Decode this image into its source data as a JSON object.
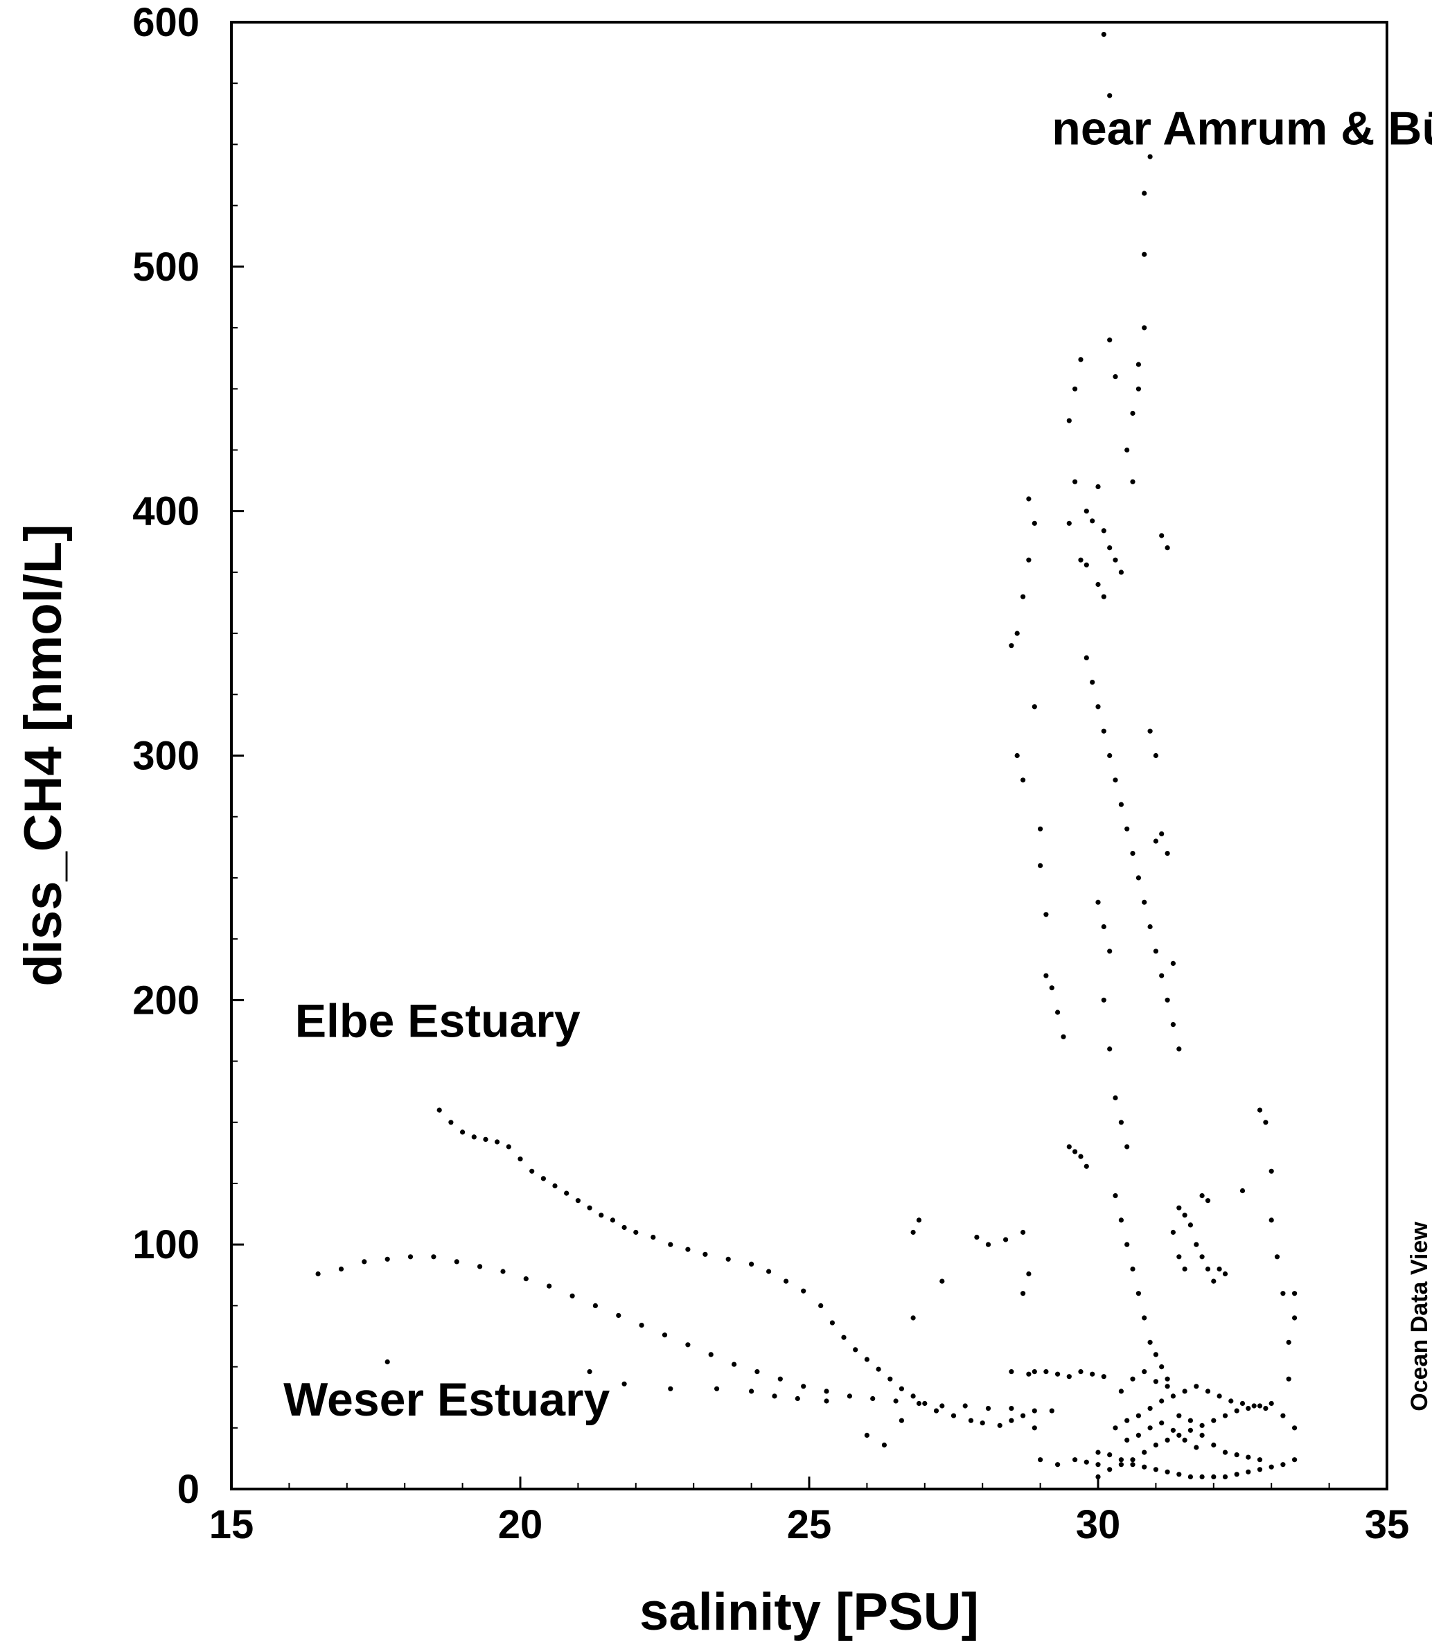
{
  "chart_data": {
    "type": "scatter",
    "xlabel": "salinity [PSU]",
    "ylabel": "diss_CH4 [nmol/L]",
    "xlim": [
      15,
      35
    ],
    "ylim": [
      0,
      600
    ],
    "x_ticks": [
      "15",
      "20",
      "25",
      "30",
      "35"
    ],
    "y_ticks": [
      "0",
      "100",
      "200",
      "300",
      "400",
      "500",
      "600"
    ],
    "grid": false,
    "marker_color": "#000000",
    "annotations": [
      {
        "id": "amrum",
        "text": "near Amrum & Büsum",
        "x": 29.2,
        "y": 550
      },
      {
        "id": "elbe",
        "text": "Elbe Estuary",
        "x": 16.1,
        "y": 185
      },
      {
        "id": "weser",
        "text": "Weser Estuary",
        "x": 15.9,
        "y": 30
      }
    ],
    "watermark": "Ocean Data View",
    "series": [
      {
        "points": [
          [
            18.6,
            155
          ],
          [
            18.8,
            150
          ],
          [
            19.0,
            146
          ],
          [
            19.2,
            144
          ],
          [
            19.4,
            143
          ],
          [
            19.6,
            142
          ],
          [
            19.8,
            140
          ],
          [
            20.0,
            135
          ],
          [
            20.2,
            130
          ],
          [
            20.4,
            127
          ],
          [
            20.6,
            124
          ],
          [
            20.8,
            121
          ],
          [
            21.0,
            118
          ],
          [
            21.2,
            115
          ],
          [
            21.4,
            112
          ],
          [
            21.6,
            110
          ],
          [
            21.8,
            107
          ],
          [
            22.0,
            105
          ],
          [
            22.3,
            103
          ],
          [
            22.6,
            100
          ],
          [
            22.9,
            98
          ],
          [
            23.2,
            96
          ],
          [
            23.6,
            94
          ],
          [
            24.0,
            92
          ],
          [
            24.3,
            89
          ],
          [
            24.6,
            85
          ],
          [
            24.9,
            81
          ],
          [
            25.2,
            75
          ],
          [
            25.4,
            68
          ],
          [
            25.6,
            62
          ],
          [
            25.8,
            57
          ],
          [
            26.0,
            53
          ],
          [
            26.2,
            49
          ],
          [
            26.4,
            45
          ],
          [
            26.6,
            41
          ],
          [
            26.8,
            38
          ],
          [
            27.0,
            35
          ],
          [
            27.2,
            32
          ],
          [
            27.5,
            30
          ],
          [
            27.8,
            28
          ],
          [
            28.0,
            27
          ],
          [
            28.3,
            26
          ],
          [
            28.5,
            28
          ],
          [
            28.7,
            30
          ],
          [
            28.9,
            25
          ],
          [
            16.5,
            88
          ],
          [
            16.9,
            90
          ],
          [
            17.3,
            93
          ],
          [
            17.7,
            94
          ],
          [
            18.1,
            95
          ],
          [
            18.5,
            95
          ],
          [
            18.9,
            93
          ],
          [
            19.3,
            91
          ],
          [
            19.7,
            89
          ],
          [
            20.1,
            86
          ],
          [
            20.5,
            83
          ],
          [
            20.9,
            79
          ],
          [
            21.3,
            75
          ],
          [
            21.7,
            71
          ],
          [
            22.1,
            67
          ],
          [
            22.5,
            63
          ],
          [
            22.9,
            59
          ],
          [
            23.3,
            55
          ],
          [
            23.7,
            51
          ],
          [
            24.1,
            48
          ],
          [
            24.5,
            45
          ],
          [
            24.9,
            42
          ],
          [
            25.3,
            40
          ],
          [
            25.7,
            38
          ],
          [
            26.1,
            37
          ],
          [
            26.5,
            36
          ],
          [
            26.9,
            35
          ],
          [
            27.3,
            34
          ],
          [
            27.7,
            34
          ],
          [
            28.1,
            33
          ],
          [
            28.5,
            33
          ],
          [
            28.9,
            32
          ],
          [
            29.2,
            32
          ],
          [
            17.7,
            52
          ],
          [
            21.2,
            48
          ],
          [
            21.8,
            43
          ],
          [
            22.6,
            41
          ],
          [
            23.4,
            41
          ],
          [
            24.0,
            40
          ],
          [
            24.4,
            38
          ],
          [
            24.8,
            37
          ],
          [
            25.3,
            36
          ],
          [
            26.3,
            18
          ],
          [
            26.0,
            22
          ],
          [
            26.6,
            28
          ],
          [
            26.8,
            70
          ],
          [
            26.8,
            105
          ],
          [
            26.9,
            110
          ],
          [
            27.3,
            85
          ],
          [
            27.9,
            103
          ],
          [
            28.1,
            100
          ],
          [
            28.4,
            102
          ],
          [
            28.7,
            105
          ],
          [
            28.5,
            48
          ],
          [
            28.8,
            47
          ],
          [
            28.7,
            80
          ],
          [
            28.8,
            88
          ],
          [
            29.0,
            12
          ],
          [
            29.3,
            10
          ],
          [
            28.5,
            345
          ],
          [
            28.6,
            350
          ],
          [
            28.7,
            365
          ],
          [
            28.8,
            380
          ],
          [
            28.8,
            405
          ],
          [
            28.9,
            395
          ],
          [
            28.6,
            300
          ],
          [
            28.7,
            290
          ],
          [
            28.9,
            320
          ],
          [
            29.0,
            270
          ],
          [
            29.0,
            255
          ],
          [
            29.1,
            235
          ],
          [
            29.1,
            210
          ],
          [
            29.2,
            205
          ],
          [
            29.3,
            195
          ],
          [
            29.4,
            185
          ],
          [
            29.5,
            140
          ],
          [
            29.6,
            138
          ],
          [
            29.7,
            136
          ],
          [
            29.8,
            132
          ],
          [
            29.5,
            437
          ],
          [
            29.6,
            450
          ],
          [
            29.7,
            462
          ],
          [
            29.6,
            412
          ],
          [
            29.5,
            395
          ],
          [
            29.8,
            400
          ],
          [
            29.9,
            396
          ],
          [
            30.0,
            410
          ],
          [
            30.1,
            392
          ],
          [
            30.2,
            385
          ],
          [
            30.3,
            380
          ],
          [
            30.4,
            375
          ],
          [
            29.7,
            380
          ],
          [
            29.8,
            378
          ],
          [
            30.0,
            370
          ],
          [
            30.1,
            365
          ],
          [
            30.1,
            595
          ],
          [
            30.2,
            570
          ],
          [
            30.9,
            545
          ],
          [
            30.8,
            530
          ],
          [
            30.8,
            505
          ],
          [
            30.8,
            475
          ],
          [
            30.7,
            460
          ],
          [
            30.6,
            440
          ],
          [
            30.5,
            425
          ],
          [
            30.7,
            450
          ],
          [
            30.2,
            470
          ],
          [
            30.3,
            455
          ],
          [
            30.6,
            412
          ],
          [
            29.8,
            340
          ],
          [
            29.9,
            330
          ],
          [
            30.0,
            320
          ],
          [
            30.1,
            310
          ],
          [
            30.2,
            300
          ],
          [
            30.3,
            290
          ],
          [
            30.4,
            280
          ],
          [
            30.5,
            270
          ],
          [
            30.6,
            260
          ],
          [
            30.7,
            250
          ],
          [
            30.8,
            240
          ],
          [
            30.9,
            230
          ],
          [
            31.0,
            220
          ],
          [
            31.1,
            210
          ],
          [
            31.2,
            200
          ],
          [
            31.3,
            190
          ],
          [
            31.4,
            180
          ],
          [
            31.0,
            265
          ],
          [
            31.1,
            268
          ],
          [
            31.2,
            260
          ],
          [
            31.1,
            390
          ],
          [
            31.2,
            385
          ],
          [
            31.0,
            300
          ],
          [
            30.9,
            310
          ],
          [
            31.3,
            215
          ],
          [
            30.0,
            240
          ],
          [
            30.1,
            230
          ],
          [
            30.2,
            220
          ],
          [
            30.1,
            200
          ],
          [
            30.2,
            180
          ],
          [
            30.3,
            160
          ],
          [
            30.4,
            150
          ],
          [
            30.5,
            140
          ],
          [
            30.3,
            120
          ],
          [
            30.4,
            110
          ],
          [
            30.5,
            100
          ],
          [
            30.6,
            90
          ],
          [
            30.7,
            80
          ],
          [
            30.8,
            70
          ],
          [
            30.9,
            60
          ],
          [
            31.0,
            55
          ],
          [
            31.1,
            50
          ],
          [
            31.2,
            45
          ],
          [
            31.4,
            115
          ],
          [
            31.5,
            112
          ],
          [
            31.6,
            108
          ],
          [
            31.7,
            100
          ],
          [
            31.8,
            95
          ],
          [
            31.9,
            90
          ],
          [
            32.0,
            85
          ],
          [
            31.3,
            105
          ],
          [
            31.4,
            95
          ],
          [
            31.5,
            90
          ],
          [
            32.1,
            90
          ],
          [
            32.2,
            88
          ],
          [
            31.8,
            120
          ],
          [
            31.9,
            118
          ],
          [
            32.5,
            122
          ],
          [
            32.8,
            155
          ],
          [
            32.9,
            150
          ],
          [
            33.0,
            130
          ],
          [
            33.0,
            110
          ],
          [
            33.1,
            95
          ],
          [
            33.2,
            80
          ],
          [
            33.3,
            60
          ],
          [
            33.4,
            80
          ],
          [
            33.4,
            70
          ],
          [
            33.3,
            45
          ],
          [
            30.0,
            5
          ],
          [
            30.2,
            8
          ],
          [
            30.4,
            10
          ],
          [
            30.6,
            12
          ],
          [
            30.8,
            15
          ],
          [
            31.0,
            18
          ],
          [
            31.2,
            20
          ],
          [
            31.4,
            22
          ],
          [
            31.6,
            24
          ],
          [
            31.8,
            26
          ],
          [
            32.0,
            28
          ],
          [
            32.2,
            30
          ],
          [
            32.4,
            32
          ],
          [
            32.6,
            33
          ],
          [
            32.8,
            34
          ],
          [
            33.0,
            35
          ],
          [
            33.2,
            30
          ],
          [
            33.4,
            25
          ],
          [
            33.4,
            12
          ],
          [
            33.2,
            10
          ],
          [
            33.0,
            9
          ],
          [
            32.8,
            8
          ],
          [
            32.6,
            7
          ],
          [
            32.4,
            6
          ],
          [
            32.2,
            5
          ],
          [
            32.0,
            5
          ],
          [
            31.8,
            5
          ],
          [
            31.6,
            5
          ],
          [
            31.4,
            6
          ],
          [
            31.2,
            7
          ],
          [
            31.0,
            8
          ],
          [
            30.8,
            9
          ],
          [
            30.6,
            10
          ],
          [
            30.4,
            12
          ],
          [
            30.2,
            14
          ],
          [
            30.0,
            15
          ],
          [
            30.3,
            25
          ],
          [
            30.5,
            28
          ],
          [
            30.7,
            30
          ],
          [
            30.9,
            33
          ],
          [
            31.1,
            36
          ],
          [
            31.3,
            38
          ],
          [
            31.5,
            40
          ],
          [
            31.7,
            42
          ],
          [
            31.9,
            40
          ],
          [
            32.1,
            38
          ],
          [
            32.3,
            36
          ],
          [
            32.5,
            35
          ],
          [
            32.7,
            34
          ],
          [
            32.9,
            33
          ],
          [
            30.4,
            40
          ],
          [
            30.6,
            45
          ],
          [
            30.8,
            48
          ],
          [
            31.0,
            44
          ],
          [
            31.2,
            42
          ],
          [
            31.4,
            30
          ],
          [
            31.6,
            28
          ],
          [
            31.8,
            22
          ],
          [
            32.0,
            18
          ],
          [
            32.2,
            15
          ],
          [
            32.4,
            14
          ],
          [
            32.6,
            13
          ],
          [
            32.8,
            12
          ],
          [
            30.5,
            20
          ],
          [
            30.7,
            22
          ],
          [
            30.9,
            25
          ],
          [
            31.1,
            27
          ],
          [
            31.3,
            24
          ],
          [
            31.5,
            20
          ],
          [
            31.7,
            17
          ],
          [
            29.5,
            46
          ],
          [
            29.7,
            48
          ],
          [
            29.9,
            47
          ],
          [
            30.1,
            46
          ],
          [
            29.3,
            47
          ],
          [
            29.1,
            48
          ],
          [
            28.9,
            48
          ],
          [
            29.6,
            12
          ],
          [
            29.8,
            11
          ],
          [
            30.0,
            10
          ]
        ]
      }
    ]
  }
}
